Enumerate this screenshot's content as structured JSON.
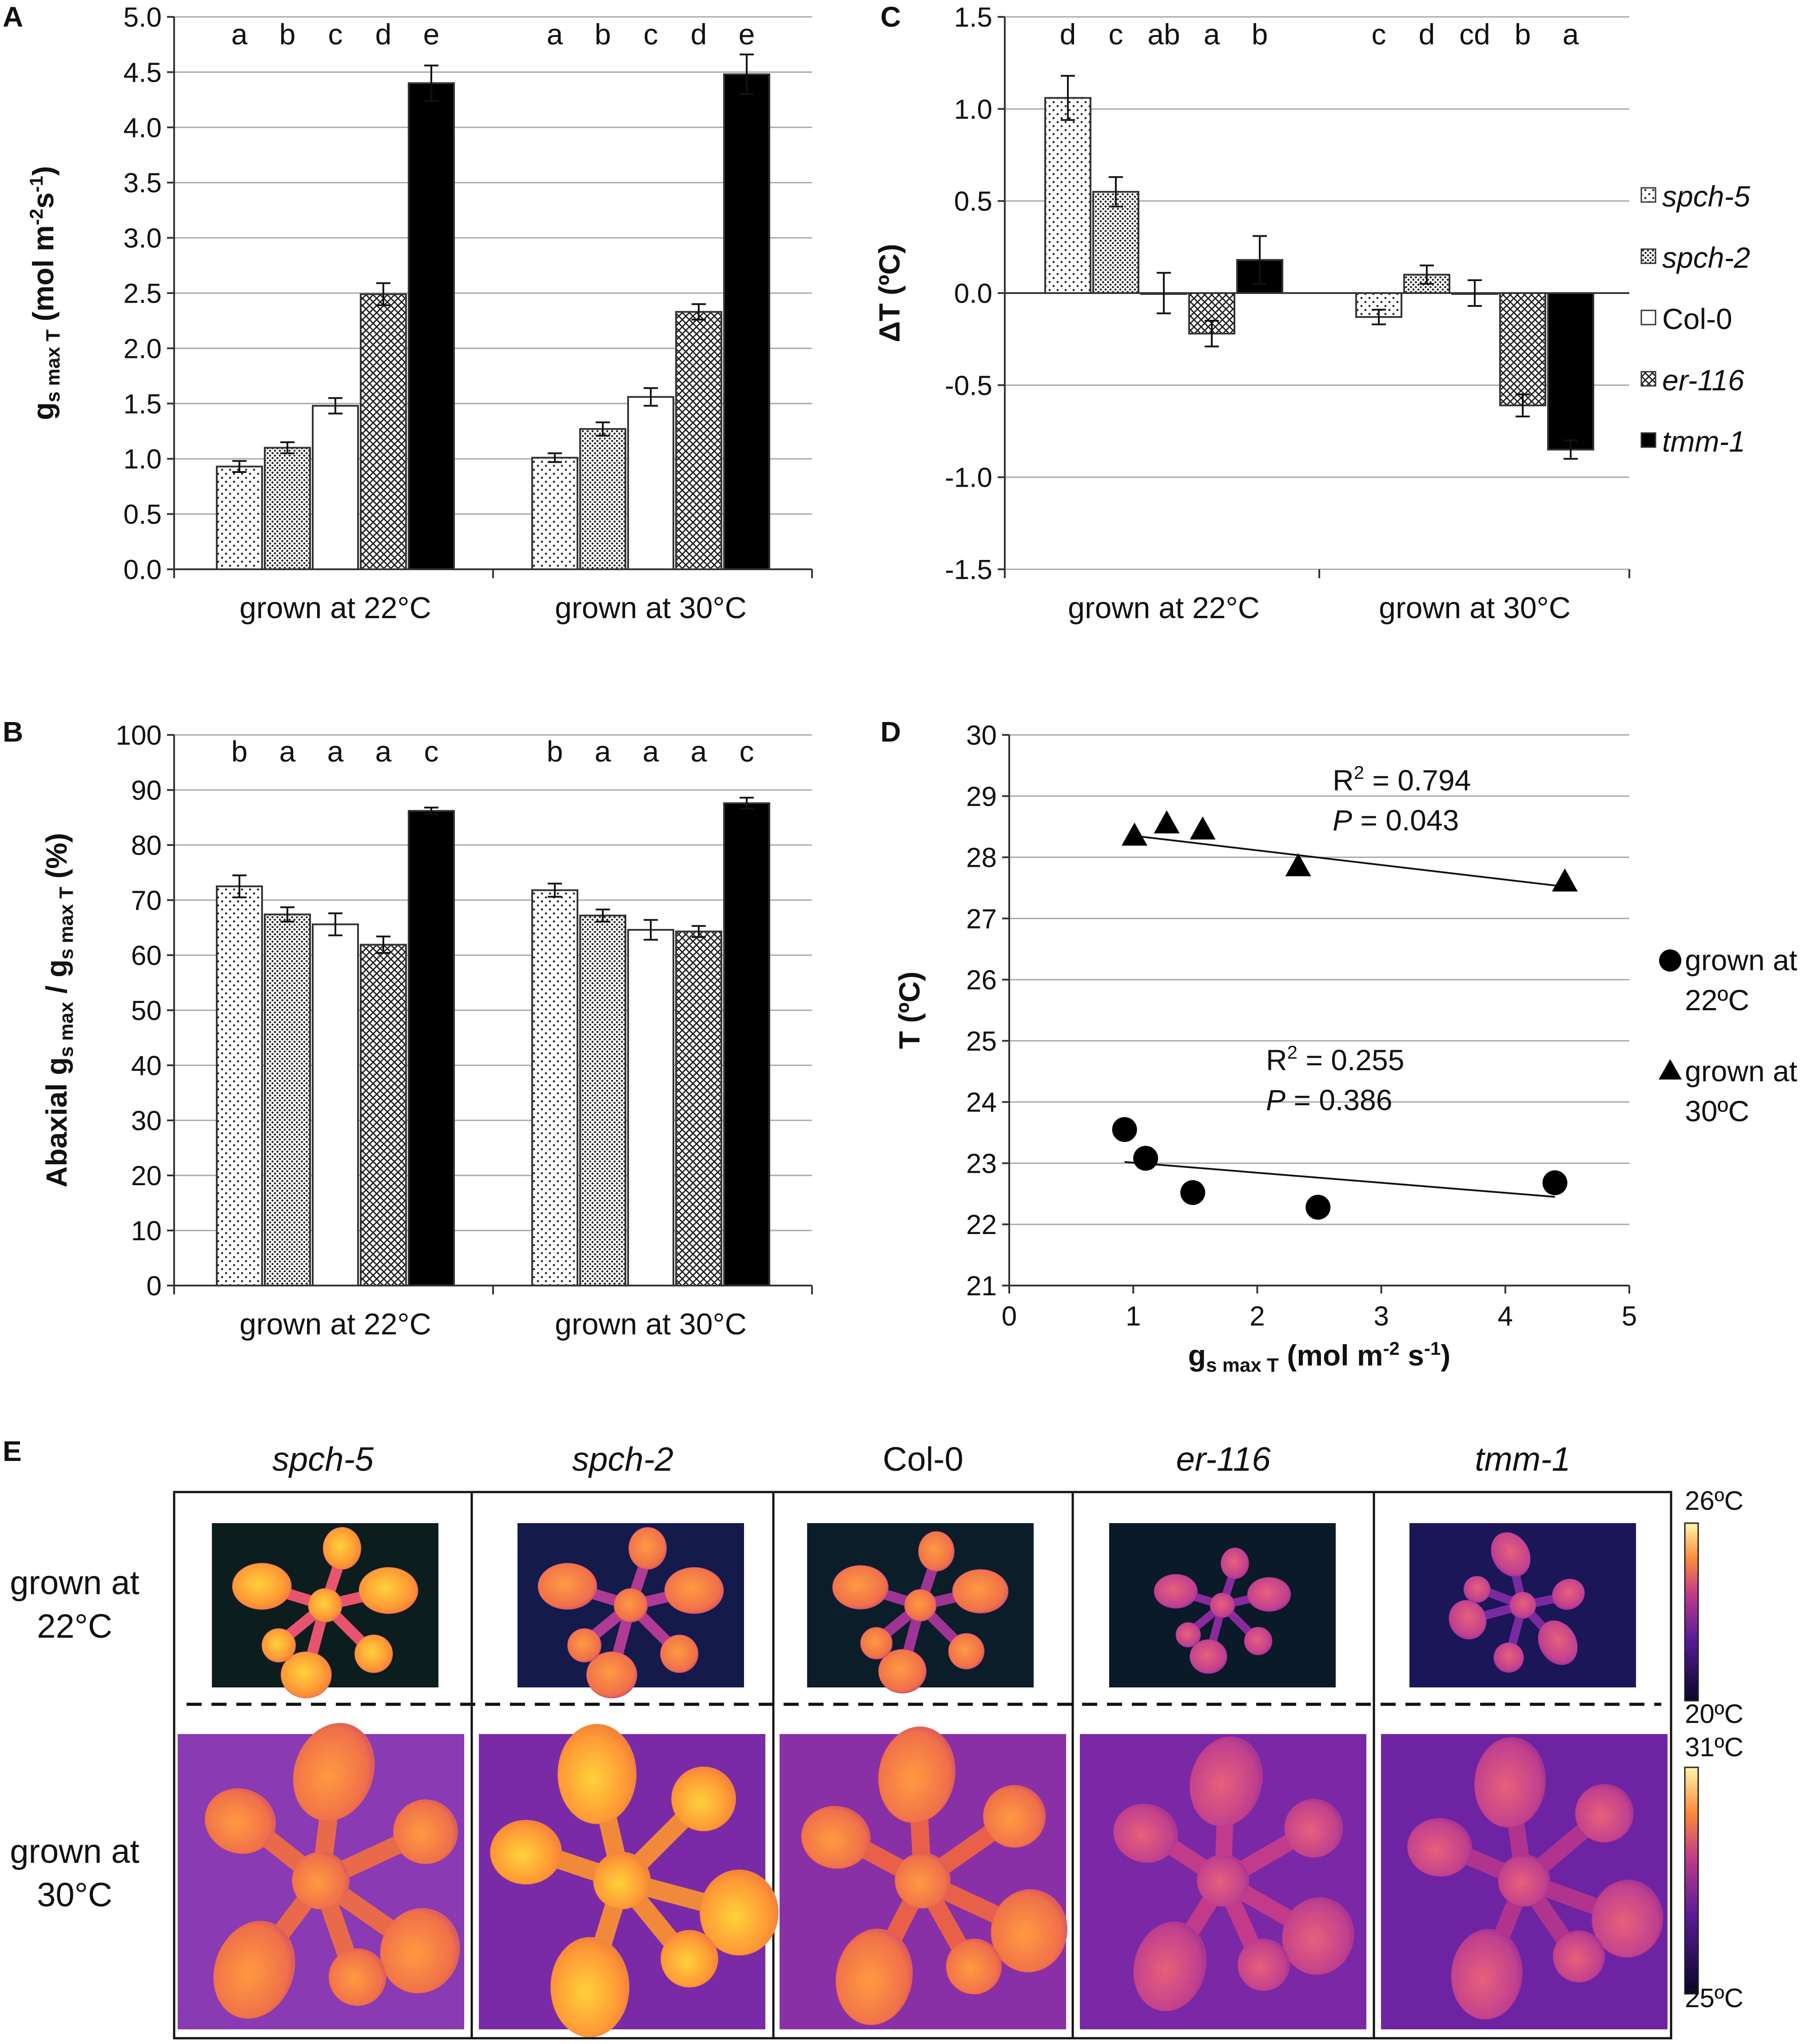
{
  "series_legend": [
    {
      "name": "spch-5",
      "italic": true,
      "pattern": "pat-dot-sparse"
    },
    {
      "name": "spch-2",
      "italic": true,
      "pattern": "pat-dot-dense"
    },
    {
      "name": "Col-0",
      "italic": false,
      "pattern": "white"
    },
    {
      "name": "er-116",
      "italic": true,
      "pattern": "pat-cross"
    },
    {
      "name": "tmm-1",
      "italic": true,
      "pattern": "black"
    }
  ],
  "chart_data": [
    {
      "id": "A",
      "panel_label": "A",
      "type": "bar",
      "ylabel": "g",
      "ylabel_sub": "s max T",
      "ylabel_unit": "(mol m",
      "ylabel_exp1": "-2",
      "ylabel_mid": "s",
      "ylabel_exp2": "-1",
      "ylabel_end": ")",
      "ylim": [
        0,
        5
      ],
      "yticks": [
        "0.0",
        "0.5",
        "1.0",
        "1.5",
        "2.0",
        "2.5",
        "3.0",
        "3.5",
        "4.0",
        "4.5",
        "5.0"
      ],
      "categories": [
        "grown at 22°C",
        "grown at 30°C"
      ],
      "series": [
        {
          "name": "spch-5",
          "values": [
            0.93,
            1.01
          ],
          "errors": [
            0.05,
            0.04
          ]
        },
        {
          "name": "spch-2",
          "values": [
            1.1,
            1.27
          ],
          "errors": [
            0.05,
            0.06
          ]
        },
        {
          "name": "Col-0",
          "values": [
            1.48,
            1.56
          ],
          "errors": [
            0.07,
            0.08
          ]
        },
        {
          "name": "er-116",
          "values": [
            2.49,
            2.33
          ],
          "errors": [
            0.1,
            0.07
          ]
        },
        {
          "name": "tmm-1",
          "values": [
            4.4,
            4.48
          ],
          "errors": [
            0.16,
            0.18
          ]
        }
      ],
      "letters": [
        [
          "a",
          "b",
          "c",
          "d",
          "e"
        ],
        [
          "a",
          "b",
          "c",
          "d",
          "e"
        ]
      ]
    },
    {
      "id": "B",
      "panel_label": "B",
      "type": "bar",
      "ylabel": "Abaxial  g",
      "ylabel_sub": "s max",
      "ylabel_mid": " / g",
      "ylabel_sub2": "s max T",
      "ylabel_end": " (%)",
      "ylim": [
        0,
        100
      ],
      "yticks": [
        "0",
        "10",
        "20",
        "30",
        "40",
        "50",
        "60",
        "70",
        "80",
        "90",
        "100"
      ],
      "categories": [
        "grown at 22°C",
        "grown at 30°C"
      ],
      "series": [
        {
          "name": "spch-5",
          "values": [
            72.5,
            71.8
          ],
          "errors": [
            2.0,
            1.2
          ]
        },
        {
          "name": "spch-2",
          "values": [
            67.4,
            67.2
          ],
          "errors": [
            1.3,
            1.1
          ]
        },
        {
          "name": "Col-0",
          "values": [
            65.6,
            64.6
          ],
          "errors": [
            2.0,
            1.8
          ]
        },
        {
          "name": "er-116",
          "values": [
            61.9,
            64.3
          ],
          "errors": [
            1.5,
            1.0
          ]
        },
        {
          "name": "tmm-1",
          "values": [
            86.2,
            87.6
          ],
          "errors": [
            0.6,
            1.0
          ]
        }
      ],
      "letters": [
        [
          "b",
          "a",
          "a",
          "a",
          "c"
        ],
        [
          "b",
          "a",
          "a",
          "a",
          "c"
        ]
      ]
    },
    {
      "id": "C",
      "panel_label": "C",
      "type": "bar",
      "ylabel": "ΔT (ºC)",
      "ylim": [
        -1.5,
        1.5
      ],
      "yticks": [
        "-1.5",
        "-1.0",
        "-0.5",
        "0.0",
        "0.5",
        "1.0",
        "1.5"
      ],
      "categories": [
        "grown at 22°C",
        "grown at 30°C"
      ],
      "series": [
        {
          "name": "spch-5",
          "values": [
            1.06,
            -0.13
          ],
          "errors": [
            0.12,
            0.04
          ]
        },
        {
          "name": "spch-2",
          "values": [
            0.55,
            0.1
          ],
          "errors": [
            0.08,
            0.05
          ]
        },
        {
          "name": "Col-0",
          "values": [
            0.0,
            0.0
          ],
          "errors": [
            0.11,
            0.07
          ]
        },
        {
          "name": "er-116",
          "values": [
            -0.22,
            -0.61
          ],
          "errors": [
            0.07,
            0.06
          ]
        },
        {
          "name": "tmm-1",
          "values": [
            0.18,
            -0.85
          ],
          "errors": [
            0.13,
            0.05
          ]
        }
      ],
      "letters": [
        [
          "d",
          "c",
          "ab",
          "a",
          "b"
        ],
        [
          "c",
          "d",
          "cd",
          "b",
          "a"
        ]
      ]
    },
    {
      "id": "D",
      "panel_label": "D",
      "type": "scatter",
      "ylabel": "T (ºC)",
      "xlabel": "g",
      "xlabel_sub": "s max  T",
      "xlabel_unit": " (mol m",
      "xlabel_exp1": "-2",
      "xlabel_mid": " s",
      "xlabel_exp2": "-1",
      "xlabel_end": ")",
      "xlim": [
        0,
        5
      ],
      "ylim": [
        21,
        30
      ],
      "xticks": [
        "0",
        "1",
        "2",
        "3",
        "4",
        "5"
      ],
      "yticks": [
        "21",
        "22",
        "23",
        "24",
        "25",
        "26",
        "27",
        "28",
        "29",
        "30"
      ],
      "series": [
        {
          "name": "grown at 22ºC",
          "marker": "circle",
          "x": [
            0.93,
            1.1,
            1.48,
            2.49,
            4.4
          ],
          "y": [
            23.55,
            23.08,
            22.52,
            22.28,
            22.68
          ],
          "trend": {
            "x1": 0.93,
            "y1": 23.02,
            "x2": 4.4,
            "y2": 22.45
          },
          "r2_text": "R",
          "r2_value": " = 0.255",
          "p_text": "P",
          "p_value": " = 0.386"
        },
        {
          "name": "grown at 30ºC",
          "marker": "triangle",
          "x": [
            1.01,
            1.27,
            1.56,
            2.33,
            4.48
          ],
          "y": [
            28.35,
            28.55,
            28.45,
            27.85,
            27.6
          ],
          "trend": {
            "x1": 1.01,
            "y1": 28.35,
            "x2": 4.48,
            "y2": 27.52
          },
          "r2_text": "R",
          "r2_value": " = 0.794",
          "p_text": "P",
          "p_value": " = 0.043"
        }
      ],
      "legend": [
        {
          "line1": "grown at",
          "line2": "22ºC",
          "marker": "circle"
        },
        {
          "line1": "grown at",
          "line2": "30ºC",
          "marker": "triangle"
        }
      ]
    }
  ],
  "panel_e": {
    "panel_label": "E",
    "columns": [
      "spch-5",
      "spch-2",
      "Col-0",
      "er-116",
      "tmm-1"
    ],
    "column_italic": [
      true,
      true,
      false,
      true,
      true
    ],
    "rows": [
      {
        "line1": "grown at",
        "line2": "22°C"
      },
      {
        "line1": "grown at",
        "line2": "30°C"
      }
    ],
    "colorbars": [
      {
        "max": "26ºC",
        "min": "20ºC"
      },
      {
        "max": "31ºC",
        "min": "25ºC"
      }
    ],
    "colors": {
      "hot": "#ffd23a",
      "warm": "#ff8a3a",
      "mid": "#c23a8a",
      "cool": "#5a1c9a",
      "cold": "#14103a"
    }
  }
}
